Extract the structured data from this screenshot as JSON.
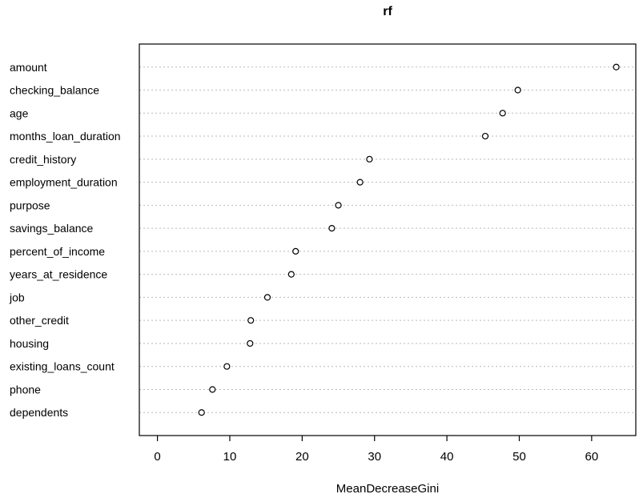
{
  "chart_data": {
    "type": "scatter",
    "subtype": "dotchart-variable-importance",
    "title": "rf",
    "xlabel": "MeanDecreaseGini",
    "ylabel": "",
    "categories": [
      "amount",
      "checking_balance",
      "age",
      "months_loan_duration",
      "credit_history",
      "employment_duration",
      "purpose",
      "savings_balance",
      "percent_of_income",
      "years_at_residence",
      "job",
      "other_credit",
      "housing",
      "existing_loans_count",
      "phone",
      "dependents"
    ],
    "values": [
      63.4,
      49.8,
      47.7,
      45.3,
      29.3,
      28.0,
      25.0,
      24.1,
      19.1,
      18.5,
      15.2,
      12.9,
      12.8,
      9.6,
      7.6,
      6.1
    ],
    "xlim": [
      -2.5,
      66.1
    ],
    "xticks": [
      0,
      10,
      20,
      30,
      40,
      50,
      60
    ],
    "grid": "dotted-horizontal-per-row",
    "legend": "none",
    "marker": "open-circle",
    "colors": {
      "background": "#ffffff",
      "frame": "#000000",
      "gridline": "#b9b9b9",
      "point_stroke": "#000000",
      "point_fill": "#ffffff",
      "text": "#000000"
    }
  }
}
